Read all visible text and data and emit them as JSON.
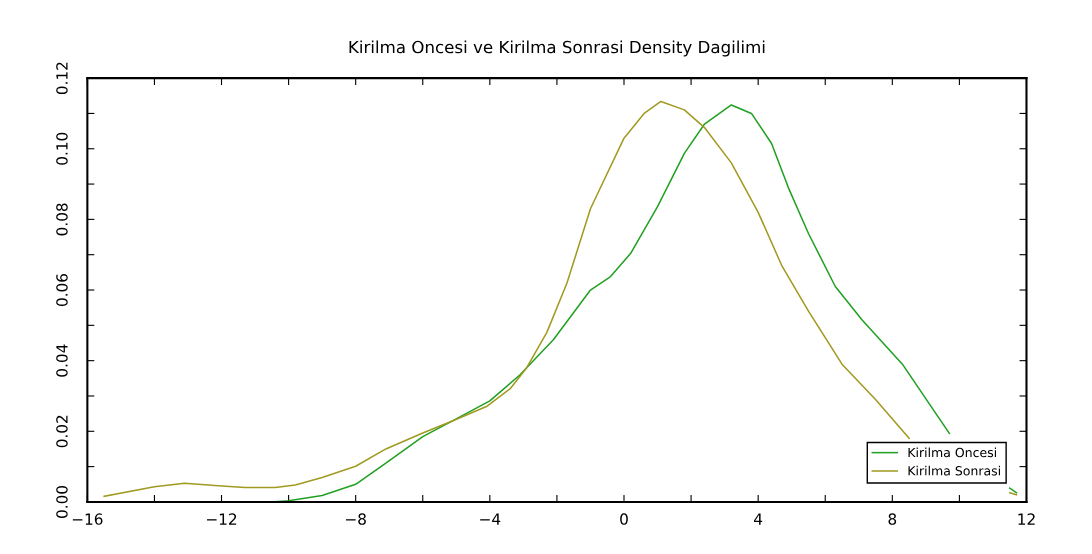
{
  "chart_data": {
    "type": "line",
    "title": "Kirilma Oncesi ve Kirilma Sonrasi Density Dagilimi",
    "legend": "bottom right",
    "grid": false,
    "xlim": [
      -16,
      12
    ],
    "ylim": [
      0,
      0.12
    ],
    "xticks": [
      -16,
      {
        "value": -14,
        "label": null
      },
      -12,
      {
        "value": -10,
        "label": null
      },
      -8,
      {
        "value": -6,
        "label": null
      },
      -4,
      {
        "value": -2,
        "label": null
      },
      0,
      {
        "value": 2,
        "label": null
      },
      4,
      {
        "value": 6,
        "label": null
      },
      8,
      {
        "value": 10,
        "label": null
      },
      12
    ],
    "yticks": [
      {
        "value": 0,
        "label": "0.00"
      },
      {
        "value": 0.01,
        "label": null
      },
      {
        "value": 0.02,
        "label": "0.02"
      },
      {
        "value": 0.03,
        "label": null
      },
      {
        "value": 0.04,
        "label": "0.04"
      },
      {
        "value": 0.05,
        "label": null
      },
      {
        "value": 0.06,
        "label": "0.06"
      },
      {
        "value": 0.07,
        "label": null
      },
      {
        "value": 0.08,
        "label": "0.08"
      },
      {
        "value": 0.09,
        "label": null
      },
      {
        "value": 0.1,
        "label": "0.10"
      },
      {
        "value": 0.11,
        "label": null
      },
      {
        "value": 0.12,
        "label": "0.12"
      }
    ],
    "series": [
      {
        "name": "Kirilma Oncesi",
        "color": "#22a022",
        "x": [
          -15.5,
          -12,
          -10.5,
          -10,
          -9,
          -8,
          -7.1,
          -6,
          -5.1,
          -4,
          -3.1,
          -2.1,
          -1,
          -0.4,
          0.2,
          1,
          1.8,
          2.4,
          3.2,
          3.8,
          4.4,
          4.9,
          5.5,
          6.3,
          7.1,
          8.3,
          9.7,
          10.5,
          11.5,
          11.7
        ],
        "values": [
          0,
          0,
          0,
          0.0003,
          0.0018,
          0.005,
          0.011,
          0.0185,
          0.023,
          0.0286,
          0.036,
          0.046,
          0.06,
          0.0638,
          0.0704,
          0.0836,
          0.0987,
          0.107,
          0.1124,
          0.11,
          0.1015,
          0.089,
          0.076,
          0.061,
          0.0515,
          0.039,
          0.0194,
          null,
          0.0039,
          0.0026
        ]
      },
      {
        "name": "Kirilma Sonrasi",
        "color": "#a09a20",
        "x": [
          -15.5,
          -14,
          -13.1,
          -12.1,
          -11.3,
          -10.4,
          -9.8,
          -9,
          -8,
          -7.1,
          -6,
          -5.1,
          -4.1,
          -3.4,
          -2.9,
          -2.3,
          -1.7,
          -1,
          0,
          0.6,
          1.1,
          1.8,
          2.4,
          3.2,
          4,
          4.7,
          5.5,
          6.5,
          7.5,
          8.5,
          10,
          11.5,
          11.7
        ],
        "values": [
          0.0016,
          0.0043,
          0.0053,
          0.0046,
          0.0041,
          0.0041,
          0.0048,
          0.0069,
          0.0101,
          0.015,
          0.0195,
          0.023,
          0.027,
          0.032,
          0.038,
          0.048,
          0.062,
          0.083,
          0.103,
          0.11,
          0.1134,
          0.111,
          0.106,
          0.096,
          0.082,
          0.067,
          0.054,
          0.039,
          0.029,
          0.018,
          null,
          0.0026,
          0.002
        ]
      }
    ]
  }
}
